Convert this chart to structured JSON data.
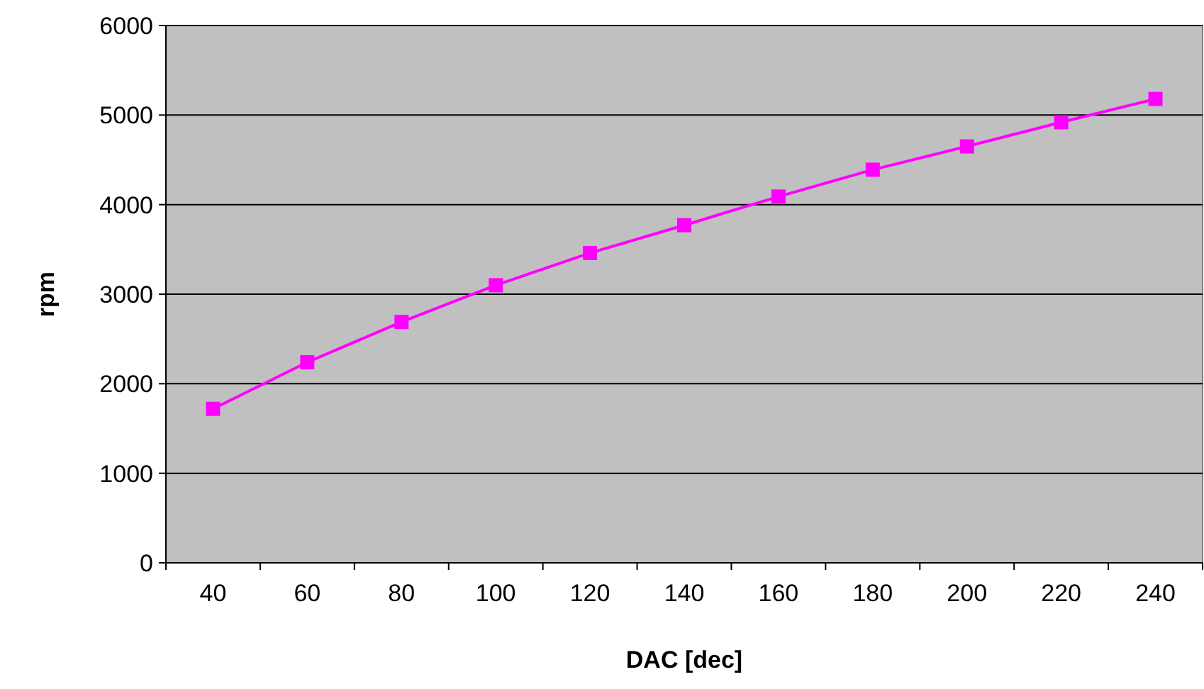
{
  "chart_data": {
    "type": "line",
    "xlabel": "DAC [dec]",
    "ylabel": "rpm",
    "categories": [
      "40",
      "60",
      "80",
      "100",
      "120",
      "140",
      "160",
      "180",
      "200",
      "220",
      "240"
    ],
    "series": [
      {
        "color": "#ff00ff",
        "values": [
          1720,
          2240,
          2690,
          3100,
          3460,
          3770,
          4090,
          4390,
          4650,
          4920,
          5180
        ]
      }
    ],
    "ylim": [
      0,
      6000
    ],
    "yticks": [
      0,
      1000,
      2000,
      3000,
      4000,
      5000,
      6000
    ],
    "grid": "y",
    "marker": "square",
    "line_style": "solid"
  }
}
